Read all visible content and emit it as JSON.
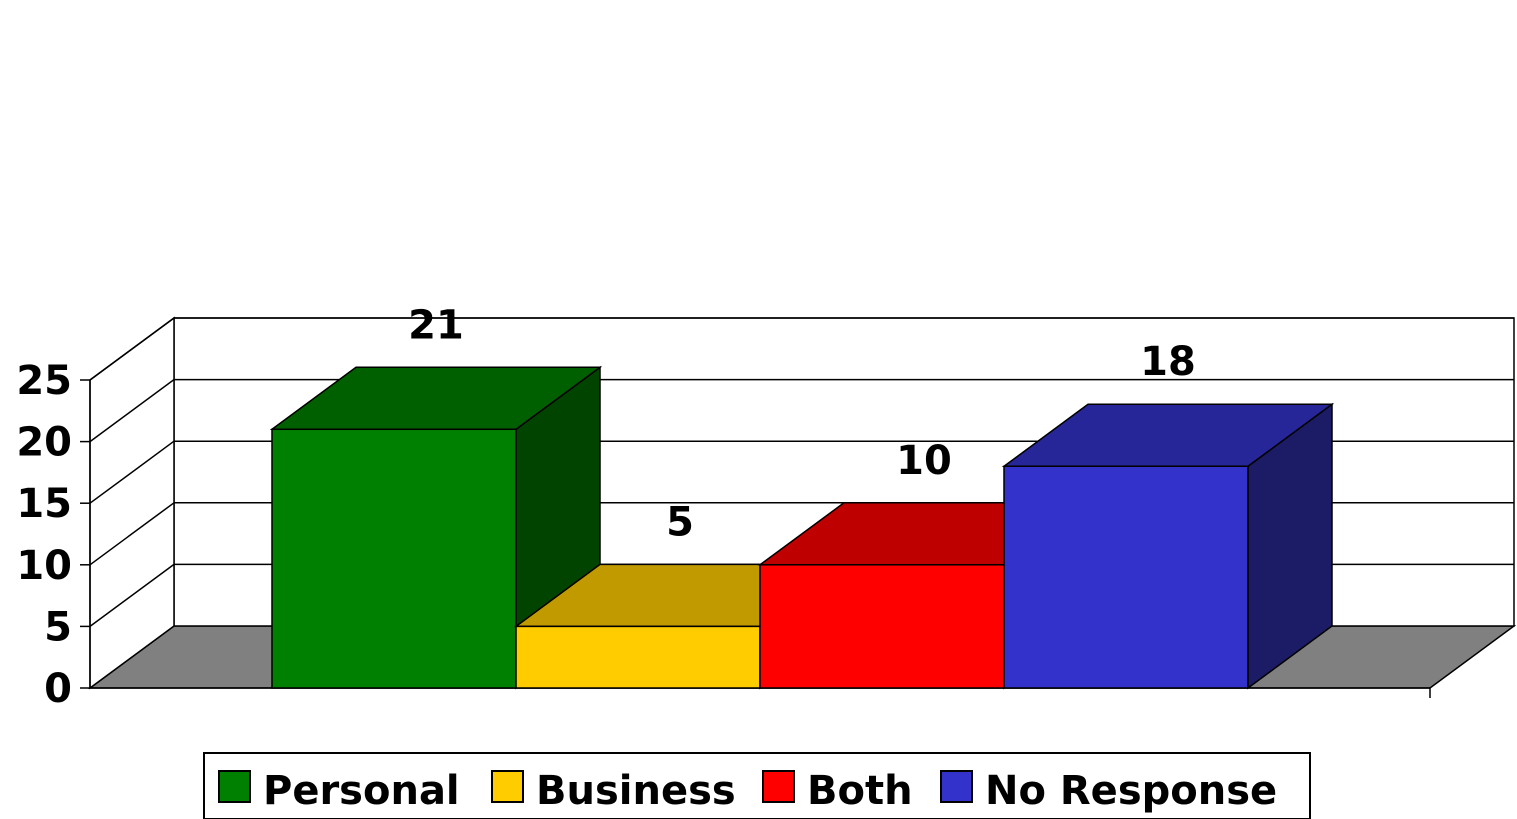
{
  "chart_data": {
    "type": "bar",
    "style": "3d",
    "categories": [
      "Personal",
      "Business",
      "Both",
      "No Response"
    ],
    "values": [
      21,
      5,
      10,
      18
    ],
    "data_labels": [
      "21",
      "5",
      "10",
      "18"
    ],
    "ylim": [
      0,
      25
    ],
    "yticks": [
      "0",
      "5",
      "10",
      "15",
      "20",
      "25"
    ],
    "grid": true,
    "legend": {
      "position": "bottom",
      "items": [
        "Personal",
        "Business",
        "Both",
        "No Response"
      ]
    },
    "colors": {
      "Personal": {
        "front": "#008000",
        "top": "#006000",
        "side": "#004400"
      },
      "Business": {
        "front": "#FFCC00",
        "top": "#C19A00",
        "side": "#8C7000"
      },
      "Both": {
        "front": "#FF0000",
        "top": "#BE0000",
        "side": "#8A0000"
      },
      "No Response": {
        "front": "#3333CC",
        "top": "#262699",
        "side": "#1C1C66"
      }
    },
    "floor_color": "#808080"
  }
}
